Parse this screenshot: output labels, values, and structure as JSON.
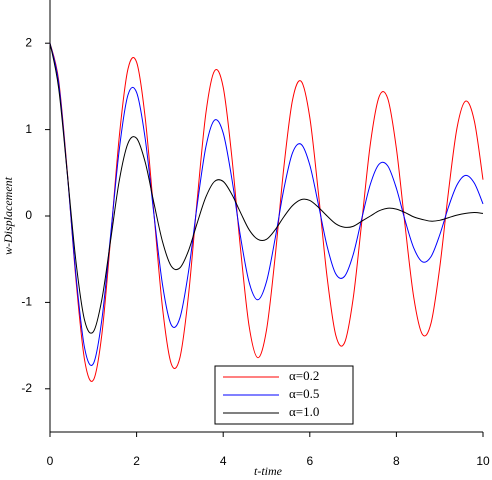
{
  "chart_data": {
    "type": "line",
    "xlabel": "t-time",
    "ylabel": "w-Displacement",
    "x": [
      0,
      0.2,
      0.4,
      0.6,
      0.8,
      1,
      1.2,
      1.4,
      1.6,
      1.8,
      2,
      2.2,
      2.4,
      2.6,
      2.8,
      3,
      3.2,
      3.4,
      3.6,
      3.8,
      4,
      4.2,
      4.4,
      4.6,
      4.8,
      5,
      5.2,
      5.4,
      5.6,
      5.8,
      6,
      6.2,
      6.4,
      6.6,
      6.8,
      7,
      7.2,
      7.4,
      7.6,
      7.8,
      8,
      8.2,
      8.4,
      8.6,
      8.8,
      9,
      9.2,
      9.4,
      9.6,
      9.8,
      10
    ],
    "series": [
      {
        "name": "α=0.2",
        "color": "#ff0000",
        "values": [
          2.0,
          1.57,
          0.51,
          -0.74,
          -1.67,
          -1.9,
          -1.36,
          -0.26,
          0.92,
          1.7,
          1.78,
          1.13,
          0.03,
          -1.07,
          -1.71,
          -1.64,
          -0.91,
          0.19,
          1.19,
          1.68,
          1.49,
          0.68,
          -0.38,
          -1.28,
          -1.64,
          -1.32,
          -0.47,
          0.56,
          1.34,
          1.56,
          1.14,
          0.26,
          -0.71,
          -1.38,
          -1.47,
          -0.96,
          -0.07,
          0.84,
          1.38,
          1.36,
          0.78,
          -0.11,
          -0.94,
          -1.37,
          -1.24,
          -0.6,
          0.27,
          1.02,
          1.33,
          1.1,
          0.42
        ]
      },
      {
        "name": "α=0.5",
        "color": "#0000ff",
        "values": [
          2.0,
          1.54,
          0.49,
          -0.69,
          -1.53,
          -1.71,
          -1.19,
          -0.22,
          0.77,
          1.4,
          1.43,
          0.89,
          0.02,
          -0.8,
          -1.26,
          -1.18,
          -0.64,
          0.13,
          0.8,
          1.11,
          0.96,
          0.43,
          -0.24,
          -0.77,
          -0.97,
          -0.76,
          -0.26,
          0.31,
          0.73,
          0.83,
          0.59,
          0.13,
          -0.35,
          -0.67,
          -0.7,
          -0.45,
          -0.03,
          0.37,
          0.6,
          0.58,
          0.32,
          -0.05,
          -0.37,
          -0.53,
          -0.47,
          -0.22,
          0.1,
          0.36,
          0.47,
          0.38,
          0.14
        ]
      },
      {
        "name": "α=1.0",
        "color": "#000000",
        "values": [
          2.0,
          1.48,
          0.49,
          -0.53,
          -1.21,
          -1.34,
          -0.96,
          -0.28,
          0.41,
          0.84,
          0.9,
          0.62,
          0.15,
          -0.3,
          -0.58,
          -0.6,
          -0.4,
          -0.08,
          0.22,
          0.4,
          0.4,
          0.25,
          0.04,
          -0.16,
          -0.27,
          -0.27,
          -0.16,
          -0.01,
          0.12,
          0.19,
          0.18,
          0.1,
          0.0,
          -0.09,
          -0.13,
          -0.12,
          -0.06,
          0.0,
          0.06,
          0.09,
          0.08,
          0.04,
          -0.01,
          -0.04,
          -0.06,
          -0.05,
          -0.02,
          0.01,
          0.03,
          0.04,
          0.03
        ]
      }
    ],
    "xlim": [
      0,
      10
    ],
    "xticks": [
      0,
      2,
      4,
      6,
      8,
      10
    ],
    "ylim": [
      -2.5,
      2.5
    ],
    "yticks": [
      -2,
      -1,
      0,
      1,
      2
    ],
    "grid": false,
    "legend": "lower center"
  }
}
